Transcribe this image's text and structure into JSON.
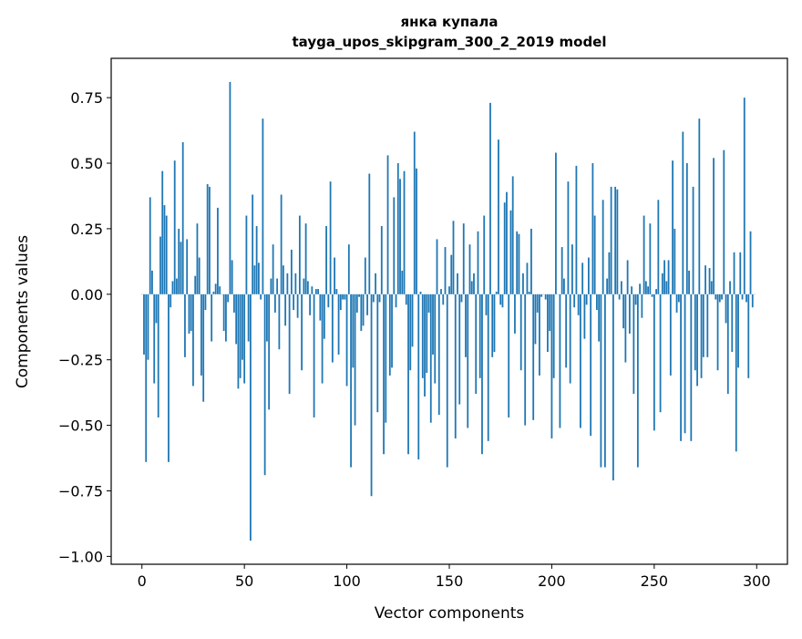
{
  "chart_data": {
    "type": "bar",
    "title": "янка купала",
    "subtitle": "tayga_upos_skipgram_300_2_2019 model",
    "xlabel": "Vector components",
    "ylabel": "Components values",
    "xlim": [
      -15,
      315
    ],
    "ylim": [
      -1.03,
      0.9
    ],
    "xticks": [
      0,
      50,
      100,
      150,
      200,
      250,
      300
    ],
    "xtick_labels": [
      "0",
      "50",
      "100",
      "150",
      "200",
      "250",
      "300"
    ],
    "yticks": [
      0.75,
      0.5,
      0.25,
      0.0,
      -0.25,
      -0.5,
      -0.75,
      -1.0
    ],
    "ytick_labels": [
      "0.75",
      "0.50",
      "0.25",
      "0.00",
      "−0.25",
      "−0.50",
      "−0.75",
      "−1.00"
    ],
    "grid": false,
    "bar_color": "#1f77b4",
    "values": [
      0.0,
      -0.23,
      -0.64,
      -0.25,
      0.37,
      0.09,
      -0.34,
      -0.11,
      -0.47,
      0.22,
      0.47,
      0.34,
      0.3,
      -0.64,
      -0.05,
      0.05,
      0.51,
      0.06,
      0.25,
      0.2,
      0.58,
      -0.24,
      0.21,
      -0.15,
      -0.14,
      -0.35,
      0.07,
      0.27,
      0.14,
      -0.31,
      -0.41,
      -0.06,
      0.42,
      0.41,
      -0.18,
      0.01,
      0.04,
      0.33,
      0.03,
      0.0,
      -0.14,
      -0.18,
      -0.03,
      0.81,
      0.13,
      -0.07,
      -0.19,
      -0.36,
      -0.32,
      -0.25,
      -0.34,
      0.3,
      -0.18,
      -0.94,
      0.38,
      0.11,
      0.26,
      0.12,
      -0.02,
      0.67,
      -0.69,
      -0.18,
      -0.44,
      0.06,
      0.19,
      -0.07,
      0.06,
      -0.21,
      0.38,
      0.11,
      -0.12,
      0.08,
      -0.38,
      0.17,
      -0.06,
      0.08,
      -0.09,
      0.3,
      -0.29,
      0.06,
      0.27,
      0.05,
      -0.08,
      0.03,
      -0.47,
      0.02,
      0.02,
      -0.1,
      -0.34,
      -0.17,
      0.26,
      -0.05,
      0.43,
      -0.26,
      0.14,
      0.02,
      -0.23,
      -0.06,
      -0.02,
      -0.02,
      -0.35,
      0.19,
      -0.66,
      -0.28,
      -0.5,
      -0.07,
      -0.01,
      -0.14,
      -0.12,
      0.14,
      -0.08,
      0.46,
      -0.77,
      -0.03,
      0.08,
      -0.45,
      -0.03,
      0.26,
      -0.61,
      -0.49,
      0.53,
      -0.31,
      -0.28,
      0.37,
      -0.05,
      0.5,
      0.44,
      0.09,
      0.47,
      -0.04,
      -0.61,
      -0.29,
      -0.2,
      0.62,
      0.48,
      -0.63,
      0.01,
      -0.32,
      -0.39,
      -0.3,
      -0.07,
      -0.49,
      -0.23,
      -0.34,
      0.21,
      -0.46,
      0.02,
      -0.04,
      0.18,
      -0.66,
      0.03,
      0.15,
      0.28,
      -0.55,
      0.08,
      -0.42,
      -0.03,
      0.27,
      -0.24,
      -0.51,
      0.19,
      0.05,
      0.08,
      -0.38,
      0.24,
      -0.32,
      -0.61,
      0.3,
      -0.08,
      -0.56,
      0.73,
      -0.24,
      -0.22,
      0.01,
      0.59,
      -0.04,
      -0.05,
      0.35,
      0.39,
      -0.47,
      0.32,
      0.45,
      -0.15,
      0.24,
      0.23,
      -0.29,
      0.08,
      -0.5,
      0.12,
      0.01,
      0.25,
      -0.48,
      -0.19,
      -0.07,
      -0.31,
      -0.01,
      0.0,
      -0.02,
      -0.22,
      -0.14,
      -0.55,
      -0.32,
      0.54,
      0.0,
      -0.51,
      0.18,
      0.06,
      -0.28,
      0.43,
      -0.34,
      0.19,
      -0.05,
      0.49,
      -0.08,
      -0.51,
      0.12,
      -0.17,
      -0.04,
      0.14,
      -0.54,
      0.5,
      0.3,
      -0.06,
      -0.18,
      -0.66,
      0.36,
      -0.66,
      0.06,
      0.16,
      0.41,
      -0.71,
      0.41,
      0.4,
      -0.02,
      0.05,
      -0.13,
      -0.26,
      0.13,
      -0.15,
      0.03,
      -0.38,
      -0.04,
      -0.66,
      0.04,
      -0.09,
      0.3,
      0.05,
      0.03,
      0.27,
      -0.01,
      -0.52,
      0.02,
      0.36,
      -0.45,
      0.08,
      0.13,
      0.05,
      0.13,
      -0.31,
      0.51,
      0.25,
      -0.07,
      -0.03,
      -0.56,
      0.62,
      -0.53,
      0.5,
      0.09,
      -0.56,
      0.41,
      -0.29,
      -0.35,
      0.67,
      -0.32,
      -0.24,
      0.11,
      -0.24,
      0.1,
      0.05,
      0.52,
      -0.02,
      -0.29,
      -0.03,
      -0.02,
      0.55,
      -0.11,
      -0.38,
      0.05,
      -0.22,
      0.16,
      -0.6,
      -0.28,
      0.16,
      -0.02,
      0.75,
      -0.03,
      -0.32,
      0.24,
      -0.05,
      0.0
    ]
  }
}
